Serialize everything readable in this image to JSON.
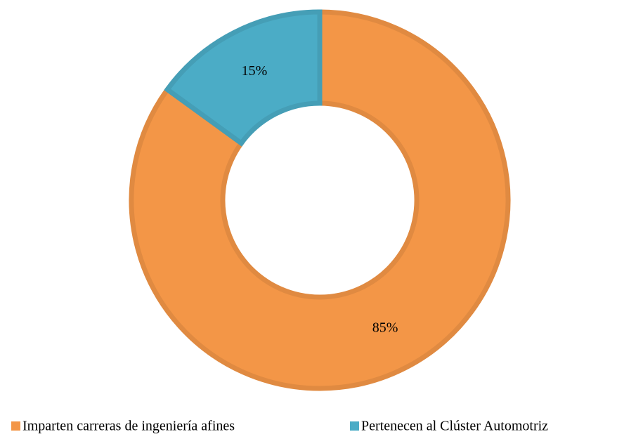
{
  "chart_data": {
    "type": "donut",
    "categories": [
      "Imparten carreras de ingeniería afines",
      "Pertenecen al Clúster Automotriz"
    ],
    "values": [
      85,
      15
    ],
    "value_labels": [
      "85%",
      "15%"
    ],
    "colors": [
      "#f39647",
      "#4bacc6"
    ],
    "legend": "bottom"
  }
}
